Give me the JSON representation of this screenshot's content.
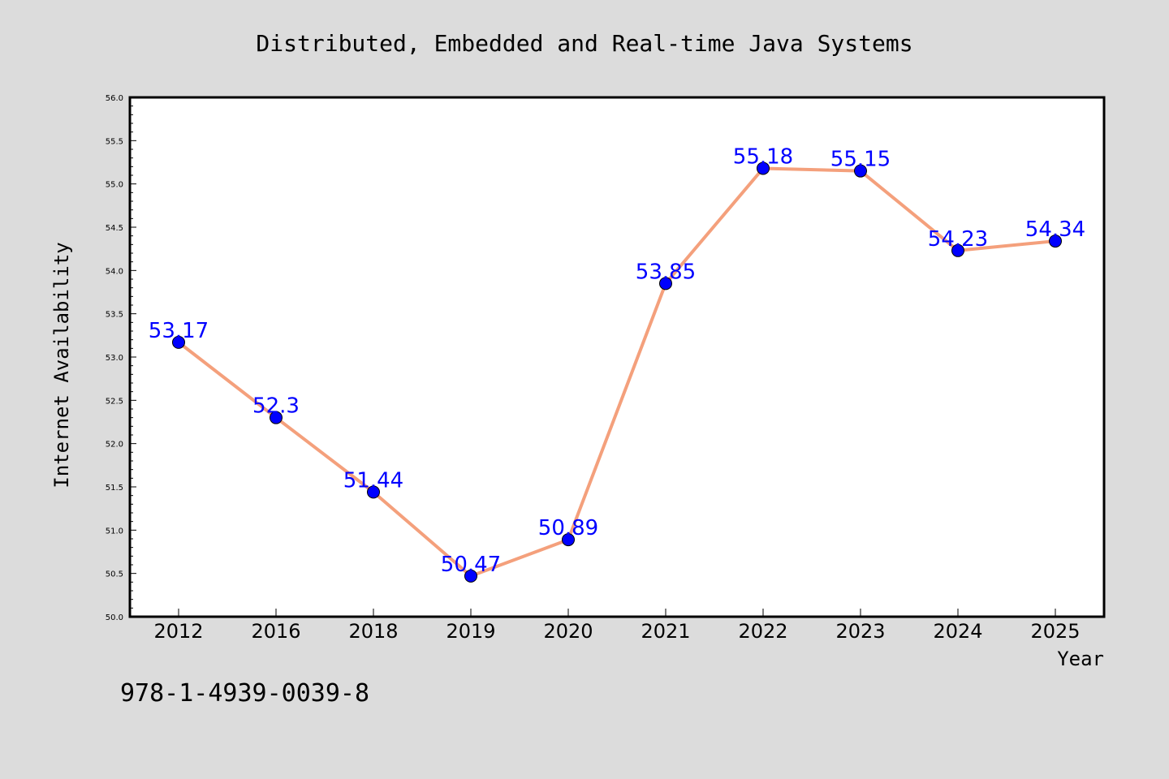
{
  "chart_data": {
    "type": "line",
    "title": "Distributed, Embedded and Real-time Java Systems",
    "xlabel": "Year",
    "ylabel": "Internet Availability",
    "categories": [
      "2012",
      "2016",
      "2018",
      "2019",
      "2020",
      "2021",
      "2022",
      "2023",
      "2024",
      "2025"
    ],
    "series": [
      {
        "values": [
          53.17,
          52.3,
          51.44,
          50.47,
          50.89,
          53.85,
          55.18,
          55.15,
          54.23,
          54.34
        ],
        "labels": [
          "53.17",
          "52.3",
          "51.44",
          "50.47",
          "50.89",
          "53.85",
          "55.18",
          "55.15",
          "54.23",
          "54.34"
        ],
        "line_color": "#f4a07c",
        "marker_color": "#0000ff",
        "label_color": "#0000ff"
      }
    ],
    "ylim": [
      50.0,
      56.0
    ],
    "yticks": [
      "50.0",
      "50.5",
      "51.0",
      "51.5",
      "52.0",
      "52.5",
      "53.0",
      "53.5",
      "54.0",
      "54.5",
      "55.0",
      "55.5",
      "56.0"
    ],
    "grid": false,
    "legend": false
  },
  "footnote": "978-1-4939-0039-8",
  "colors": {
    "background": "#dcdcdc",
    "plot_background": "#ffffff",
    "axis": "#000000"
  }
}
